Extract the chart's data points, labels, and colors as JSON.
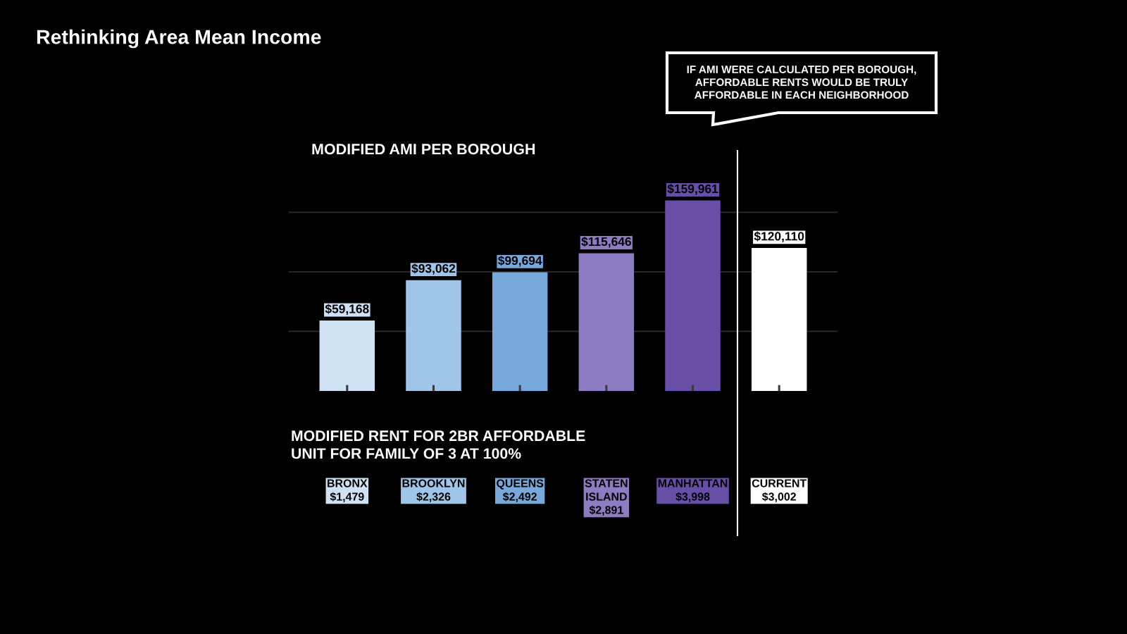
{
  "chart_data": {
    "type": "bar",
    "title": "Rethinking Area Mean Income",
    "subtitle": "MODIFIED AMI PER BOROUGH",
    "categories": [
      "BRONX\n$1,479",
      "BROOKLYN\n$2,326",
      "QUEENS\n$2,492",
      "STATEN\nISLAND\n$2,891",
      "MANHATTAN\n$3,998",
      "CURRENT\n$3,002"
    ],
    "values": [
      59168,
      93062,
      99694,
      115646,
      159961,
      120110
    ],
    "colors": [
      "#cfe2f3",
      "#9fc5e8",
      "#76a8d9",
      "#8e7cc3",
      "#674ea7",
      "#ffffff"
    ],
    "value_labels": [
      "$59,168",
      "$93,062",
      "$99,694",
      "$115,646",
      "$159,961",
      "$120,110"
    ],
    "yticks": [
      {
        "value": 50000,
        "label": null
      },
      {
        "value": 100000,
        "label": null
      },
      {
        "value": 150000,
        "label": null
      }
    ],
    "grid": "y",
    "tick_labels": "x",
    "annotations": [
      "MODIFIED RENT FOR 2BR AFFORDABLE\nUNIT FOR FAMILY OF 3 AT 100%",
      "IF AMI WERE CALCULATED PER BOROUGH,\nAFFORDABLE RENTS WOULD BE TRULY\nAFFORDABLE IN EACH NEIGHBORHOOD"
    ]
  }
}
